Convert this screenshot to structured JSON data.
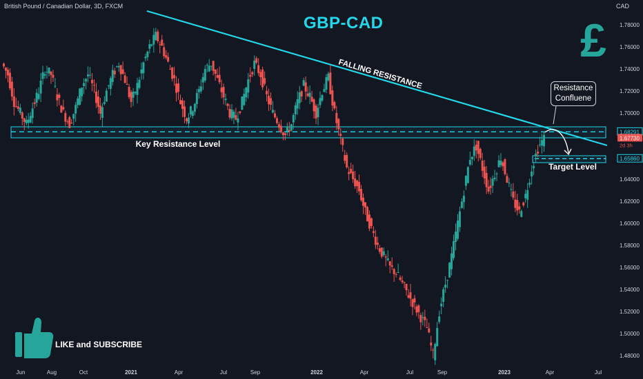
{
  "header": {
    "symbol": "British Pound / Canadian Dollar, 3D, FXCM",
    "currency": "CAD",
    "title": "GBP-CAD"
  },
  "annotations": {
    "falling_resistance": "FALLING RESISTANCE",
    "key_resistance": "Key Resistance Level",
    "target": "Target Level",
    "callout_line1": "Resistance",
    "callout_line2": "Confluene",
    "like": "LIKE and SUBSCRIBE"
  },
  "icons": {
    "pound": "£",
    "thumb": "thumbs-up-icon"
  },
  "price_tags": {
    "resistance": "1.68291",
    "current": "1.67730",
    "countdown": "2d 3h",
    "target": "1.65860"
  },
  "colors": {
    "background": "#131722",
    "up": "#26a69a",
    "down": "#ef5350",
    "accent": "#22d8ea",
    "text": "#d1d4dc"
  },
  "chart_data": {
    "type": "candlestick",
    "title": "GBP-CAD",
    "ylabel": "CAD",
    "ylim": [
      1.47,
      1.8
    ],
    "y_ticks": [
      "1.78000",
      "1.76000",
      "1.74000",
      "1.72000",
      "1.70000",
      "1.68000",
      "1.66000",
      "1.64000",
      "1.62000",
      "1.60000",
      "1.58000",
      "1.56000",
      "1.54000",
      "1.52000",
      "1.50000",
      "1.48000"
    ],
    "x_ticks": [
      "Jun",
      "Aug",
      "Oct",
      "2021",
      "Apr",
      "Jul",
      "Sep",
      "2022",
      "Apr",
      "Jul",
      "Sep",
      "2023",
      "Apr",
      "Jul"
    ],
    "series": [
      {
        "name": "price",
        "points": [
          [
            0,
            1.745
          ],
          [
            2,
            1.735
          ],
          [
            4,
            1.71
          ],
          [
            6,
            1.7
          ],
          [
            8,
            1.69
          ],
          [
            10,
            1.705
          ],
          [
            12,
            1.72
          ],
          [
            14,
            1.74
          ],
          [
            16,
            1.735
          ],
          [
            18,
            1.715
          ],
          [
            20,
            1.7
          ],
          [
            22,
            1.69
          ],
          [
            24,
            1.705
          ],
          [
            26,
            1.725
          ],
          [
            28,
            1.735
          ],
          [
            30,
            1.72
          ],
          [
            32,
            1.7
          ],
          [
            34,
            1.72
          ],
          [
            36,
            1.735
          ],
          [
            38,
            1.745
          ],
          [
            40,
            1.73
          ],
          [
            42,
            1.71
          ],
          [
            44,
            1.725
          ],
          [
            46,
            1.745
          ],
          [
            48,
            1.76
          ],
          [
            50,
            1.77
          ],
          [
            52,
            1.76
          ],
          [
            54,
            1.745
          ],
          [
            56,
            1.73
          ],
          [
            58,
            1.71
          ],
          [
            60,
            1.695
          ],
          [
            62,
            1.705
          ],
          [
            64,
            1.72
          ],
          [
            66,
            1.74
          ],
          [
            68,
            1.745
          ],
          [
            70,
            1.73
          ],
          [
            72,
            1.715
          ],
          [
            74,
            1.7
          ],
          [
            76,
            1.695
          ],
          [
            78,
            1.71
          ],
          [
            80,
            1.73
          ],
          [
            82,
            1.745
          ],
          [
            84,
            1.735
          ],
          [
            86,
            1.715
          ],
          [
            88,
            1.7
          ],
          [
            90,
            1.69
          ],
          [
            92,
            1.68
          ],
          [
            94,
            1.69
          ],
          [
            96,
            1.71
          ],
          [
            98,
            1.725
          ],
          [
            100,
            1.715
          ],
          [
            102,
            1.7
          ],
          [
            104,
            1.72
          ],
          [
            106,
            1.732
          ],
          [
            108,
            1.7
          ],
          [
            110,
            1.675
          ],
          [
            112,
            1.65
          ],
          [
            114,
            1.64
          ],
          [
            116,
            1.63
          ],
          [
            118,
            1.61
          ],
          [
            120,
            1.595
          ],
          [
            122,
            1.58
          ],
          [
            124,
            1.57
          ],
          [
            126,
            1.56
          ],
          [
            128,
            1.555
          ],
          [
            130,
            1.545
          ],
          [
            132,
            1.535
          ],
          [
            134,
            1.525
          ],
          [
            136,
            1.515
          ],
          [
            138,
            1.505
          ],
          [
            140,
            1.48
          ],
          [
            142,
            1.52
          ],
          [
            144,
            1.545
          ],
          [
            146,
            1.57
          ],
          [
            148,
            1.6
          ],
          [
            150,
            1.63
          ],
          [
            152,
            1.66
          ],
          [
            154,
            1.67
          ],
          [
            156,
            1.65
          ],
          [
            158,
            1.63
          ],
          [
            160,
            1.645
          ],
          [
            162,
            1.66
          ],
          [
            164,
            1.64
          ],
          [
            166,
            1.62
          ],
          [
            168,
            1.61
          ],
          [
            170,
            1.625
          ],
          [
            172,
            1.65
          ],
          [
            174,
            1.668
          ],
          [
            176,
            1.677
          ]
        ]
      }
    ],
    "horizontal_levels": [
      {
        "label": "Key Resistance Level",
        "value": 1.6829
      },
      {
        "label": "Target Level",
        "value": 1.6586
      }
    ],
    "trendline": {
      "label": "FALLING RESISTANCE",
      "from": [
        1.8,
        "2020-11"
      ],
      "to": [
        1.668,
        "2023-05"
      ]
    },
    "last_price": 1.6773
  }
}
